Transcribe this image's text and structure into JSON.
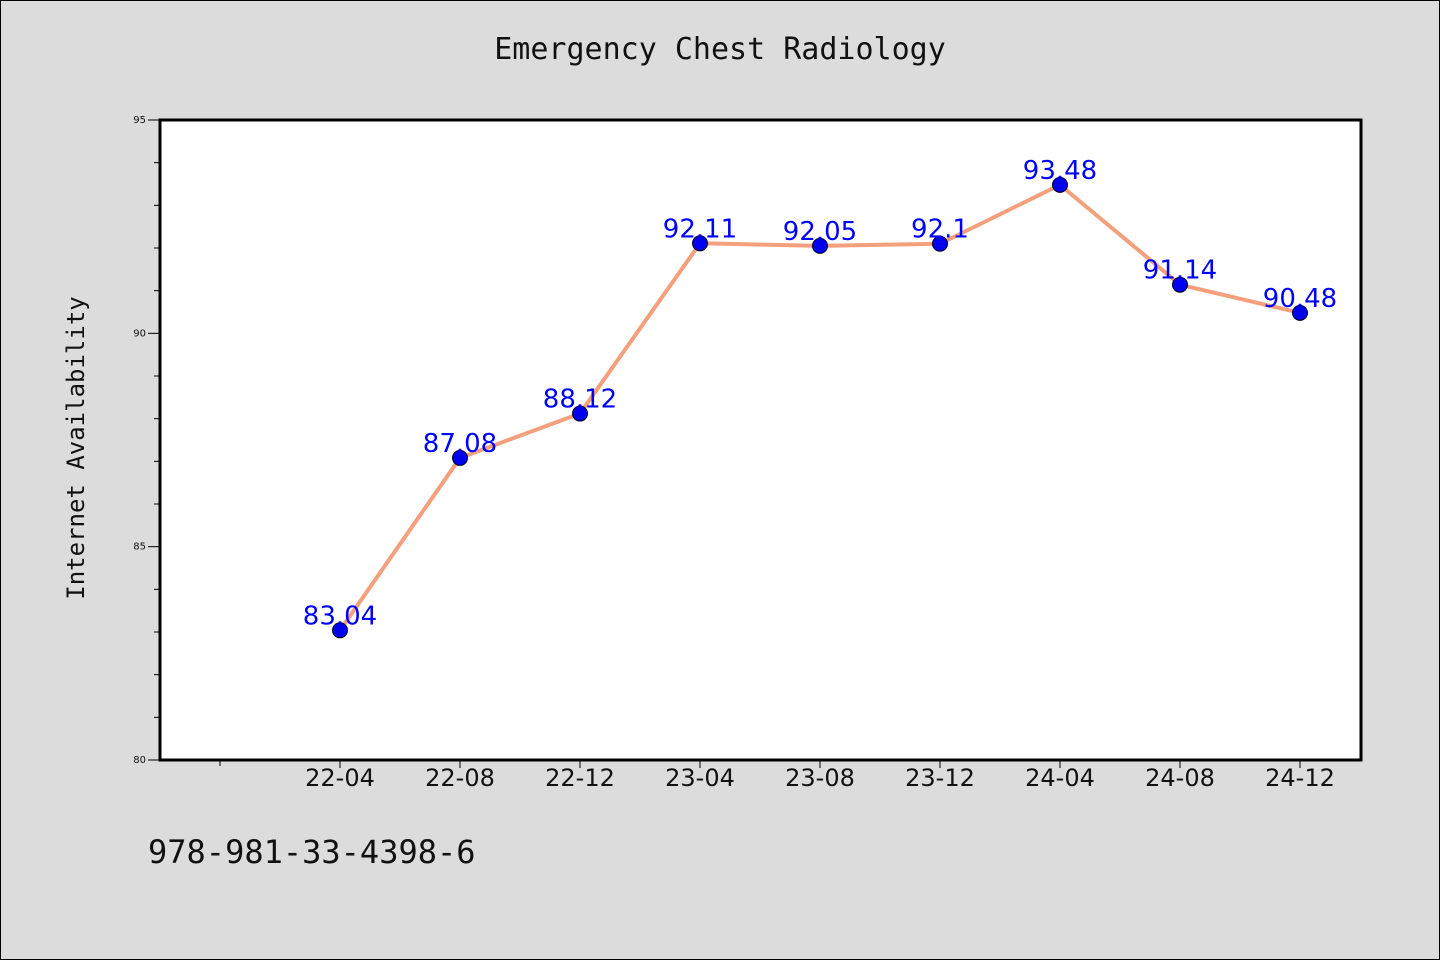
{
  "chart_data": {
    "type": "line",
    "title": "Emergency Chest Radiology",
    "ylabel": "Internet Availability",
    "xlabel": "",
    "categories": [
      "22-04",
      "22-08",
      "22-12",
      "23-04",
      "23-08",
      "23-12",
      "24-04",
      "24-08",
      "24-12"
    ],
    "series": [
      {
        "values": [
          83.04,
          87.08,
          88.12,
          92.11,
          92.05,
          92.1,
          93.48,
          91.14,
          90.48
        ],
        "labels": [
          "83.04",
          "87.08",
          "88.12",
          "92.11",
          "92.05",
          "92.1",
          "93.48",
          "91.14",
          "90.48"
        ],
        "line_color": "#f4a07c",
        "marker_color": "#0000ee"
      }
    ],
    "ylim": [
      80,
      95
    ],
    "yticks": [
      "80",
      "85",
      "90",
      "95"
    ],
    "grid": false,
    "label_color": "#0000ff"
  },
  "footer": {
    "code": "978-981-33-4398-6"
  },
  "colors": {
    "background": "#dcdcdc",
    "plot_background": "#ffffff"
  }
}
